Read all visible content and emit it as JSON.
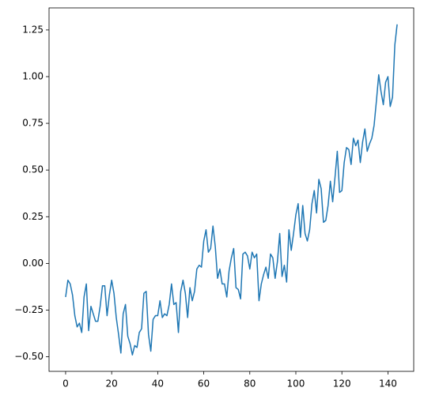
{
  "chart_data": {
    "type": "line",
    "color": "#1f77b4",
    "x": [
      0,
      1,
      2,
      3,
      4,
      5,
      6,
      7,
      8,
      9,
      10,
      11,
      12,
      13,
      14,
      15,
      16,
      17,
      18,
      19,
      20,
      21,
      22,
      23,
      24,
      25,
      26,
      27,
      28,
      29,
      30,
      31,
      32,
      33,
      34,
      35,
      36,
      37,
      38,
      39,
      40,
      41,
      42,
      43,
      44,
      45,
      46,
      47,
      48,
      49,
      50,
      51,
      52,
      53,
      54,
      55,
      56,
      57,
      58,
      59,
      60,
      61,
      62,
      63,
      64,
      65,
      66,
      67,
      68,
      69,
      70,
      71,
      72,
      73,
      74,
      75,
      76,
      77,
      78,
      79,
      80,
      81,
      82,
      83,
      84,
      85,
      86,
      87,
      88,
      89,
      90,
      91,
      92,
      93,
      94,
      95,
      96,
      97,
      98,
      99,
      100,
      101,
      102,
      103,
      104,
      105,
      106,
      107,
      108,
      109,
      110,
      111,
      112,
      113,
      114,
      115,
      116,
      117,
      118,
      119,
      120,
      121,
      122,
      123,
      124,
      125,
      126,
      127,
      128,
      129,
      130,
      131,
      132,
      133,
      134,
      135,
      136,
      137,
      138,
      139,
      140,
      141,
      142,
      143,
      144
    ],
    "values": [
      -0.18,
      -0.09,
      -0.11,
      -0.17,
      -0.28,
      -0.34,
      -0.32,
      -0.37,
      -0.18,
      -0.11,
      -0.36,
      -0.23,
      -0.27,
      -0.31,
      -0.31,
      -0.23,
      -0.12,
      -0.12,
      -0.28,
      -0.17,
      -0.09,
      -0.16,
      -0.29,
      -0.38,
      -0.48,
      -0.27,
      -0.22,
      -0.39,
      -0.43,
      -0.49,
      -0.44,
      -0.45,
      -0.37,
      -0.35,
      -0.16,
      -0.15,
      -0.38,
      -0.47,
      -0.3,
      -0.28,
      -0.28,
      -0.2,
      -0.29,
      -0.27,
      -0.28,
      -0.22,
      -0.11,
      -0.22,
      -0.21,
      -0.37,
      -0.15,
      -0.09,
      -0.16,
      -0.29,
      -0.13,
      -0.2,
      -0.15,
      -0.03,
      -0.01,
      -0.02,
      0.12,
      0.18,
      0.06,
      0.08,
      0.2,
      0.09,
      -0.08,
      -0.03,
      -0.11,
      -0.11,
      -0.18,
      -0.04,
      0.03,
      0.08,
      -0.13,
      -0.14,
      -0.19,
      0.05,
      0.06,
      0.04,
      -0.03,
      0.06,
      0.03,
      0.05,
      -0.2,
      -0.11,
      -0.06,
      -0.02,
      -0.08,
      0.05,
      0.03,
      -0.08,
      0.01,
      0.16,
      -0.07,
      -0.01,
      -0.1,
      0.18,
      0.07,
      0.16,
      0.26,
      0.32,
      0.14,
      0.31,
      0.16,
      0.12,
      0.18,
      0.32,
      0.39,
      0.27,
      0.45,
      0.4,
      0.22,
      0.23,
      0.31,
      0.44,
      0.33,
      0.46,
      0.6,
      0.38,
      0.39,
      0.54,
      0.62,
      0.61,
      0.53,
      0.67,
      0.63,
      0.66,
      0.54,
      0.65,
      0.72,
      0.6,
      0.64,
      0.67,
      0.74,
      0.87,
      1.01,
      0.92,
      0.85,
      0.97,
      1.0,
      0.84,
      0.89,
      1.17,
      1.28
    ],
    "xlim": [
      -7.2,
      151.2
    ],
    "ylim": [
      -0.578,
      1.368
    ],
    "xticks": [
      0,
      20,
      40,
      60,
      80,
      100,
      120,
      140
    ],
    "yticks": [
      {
        "value": -0.5,
        "label": "−0.50"
      },
      {
        "value": -0.25,
        "label": "−0.25"
      },
      {
        "value": 0,
        "label": "0.00"
      },
      0.25,
      {
        "value": 0.5,
        "label": "0.50"
      },
      0.75,
      {
        "value": 1,
        "label": "1.00"
      },
      1.25
    ]
  }
}
